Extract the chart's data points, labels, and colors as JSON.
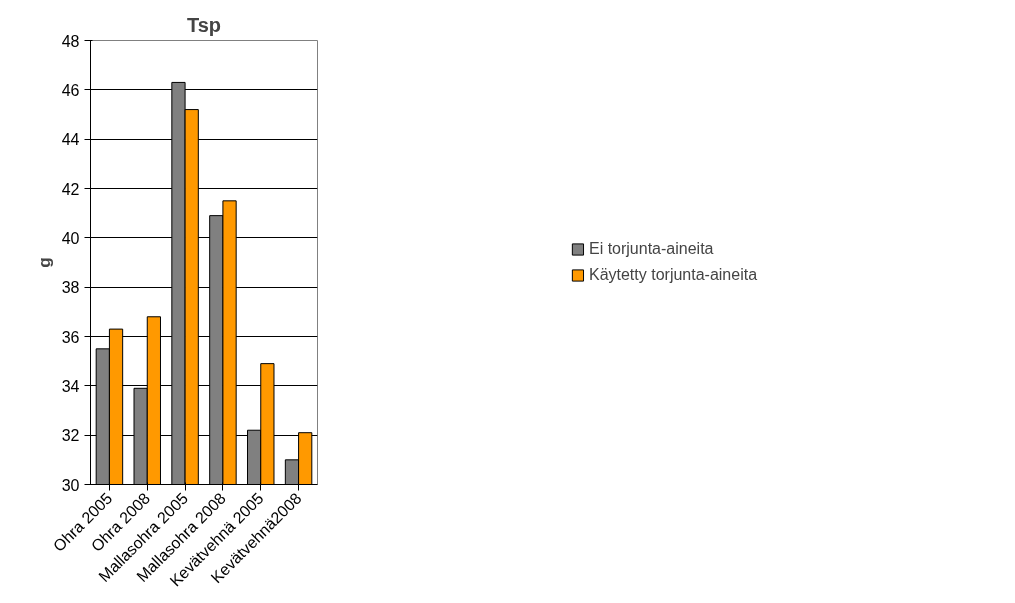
{
  "chart_data": {
    "type": "bar",
    "title": "Tsp",
    "ylabel": "g",
    "categories": [
      "Ohra 2005",
      "Ohra 2008",
      "Mallasohra 2005",
      "Mallasohra 2008",
      "Kevätvehnä 2005",
      "Kevätvehnä2008"
    ],
    "series": [
      {
        "name": "Ei torjunta-aineita",
        "color": "#808080",
        "values": [
          35.5,
          33.9,
          46.3,
          40.9,
          32.2,
          31.0
        ]
      },
      {
        "name": "Käytetty torjunta-aineita",
        "color": "#ff9900",
        "values": [
          36.3,
          36.8,
          45.2,
          41.5,
          34.9,
          32.1
        ]
      }
    ],
    "ylim": [
      30,
      48
    ],
    "yticks": [
      30,
      32,
      34,
      36,
      38,
      40,
      42,
      44,
      46,
      48
    ],
    "grid": "y",
    "legend": "right"
  }
}
